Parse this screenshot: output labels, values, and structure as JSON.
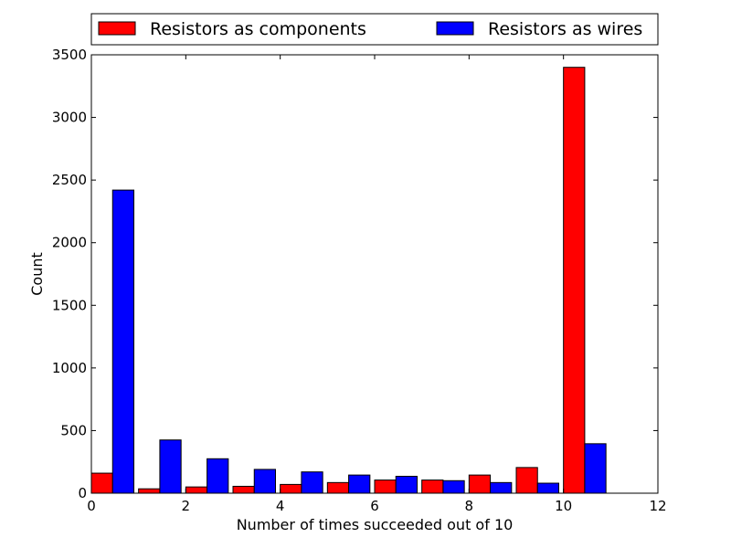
{
  "chart_data": {
    "type": "bar",
    "title": "",
    "xlabel": "Number of times succeeded out of 10",
    "ylabel": "Count",
    "xlim": [
      0,
      12
    ],
    "ylim": [
      0,
      3500
    ],
    "xticks": [
      0,
      2,
      4,
      6,
      8,
      10,
      12
    ],
    "yticks": [
      0,
      500,
      1000,
      1500,
      2000,
      2500,
      3000,
      3500
    ],
    "x": [
      0,
      1,
      2,
      3,
      4,
      5,
      6,
      7,
      8,
      9,
      10
    ],
    "bar_width": 0.45,
    "grid": false,
    "legend_position": "top",
    "series": [
      {
        "name": "Resistors as components",
        "color": "#ff0000",
        "offset": 0.0,
        "values": [
          160,
          35,
          50,
          55,
          70,
          85,
          105,
          105,
          145,
          205,
          3400
        ]
      },
      {
        "name": "Resistors as wires",
        "color": "#0000ff",
        "offset": 0.45,
        "values": [
          2420,
          425,
          275,
          190,
          170,
          145,
          135,
          100,
          85,
          80,
          395
        ]
      }
    ]
  }
}
